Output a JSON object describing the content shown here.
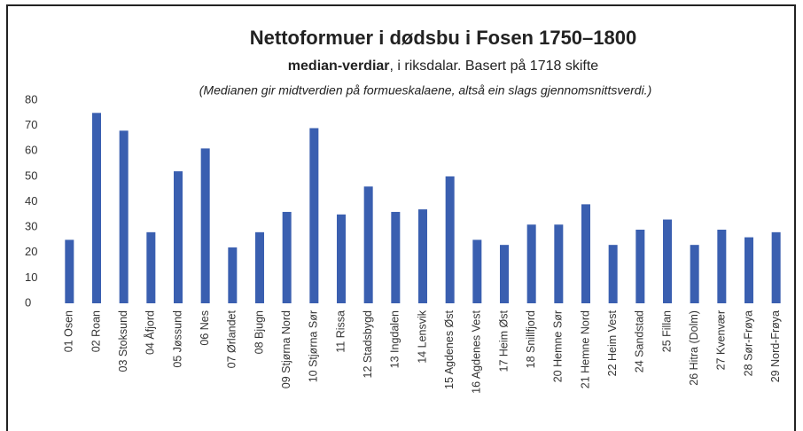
{
  "chart_data": {
    "type": "bar",
    "title": "Nettoformuer i dødsbu i Fosen 1750–1800",
    "subtitle_bold": "median-verdiar",
    "subtitle": ", i riksdalar. Basert på 1718 skifte",
    "note": "(Medianen gir midtverdien på formueskalaene, altså ein slags gjennomsnittsverdi.)",
    "categories": [
      "01 Osen",
      "02 Roan",
      "03 Stoksund",
      "04 Åfjord",
      "05 Jøssund",
      "06 Nes",
      "07 Ørlandet",
      "08 Bjugn",
      "09 Stjørna Nord",
      "10 Stjørna Sør",
      "11 Rissa",
      "12 Stadsbygd",
      "13 Ingdalen",
      "14 Lensvik",
      "15 Agdenes Øst",
      "16 Agdenes Vest",
      "17 Heim Øst",
      "18 Snillfjord",
      "20 Hemne Sør",
      "21 Hemne Nord",
      "22 Heim Vest",
      "24 Sandstad",
      "25 Fillan",
      "26 Hitra (Dolm)",
      "27 Kvenvær",
      "28 Sør-Frøya",
      "29 Nord-Frøya"
    ],
    "values": [
      25,
      75,
      68,
      28,
      52,
      61,
      22,
      28,
      36,
      69,
      35,
      46,
      36,
      37,
      50,
      25,
      23,
      31,
      31,
      39,
      23,
      29,
      33,
      23,
      29,
      26,
      28
    ],
    "color": "#3a5fb0",
    "ylim": [
      0,
      80
    ],
    "yticks": [
      0,
      10,
      20,
      30,
      40,
      50,
      60,
      70,
      80
    ],
    "grid": false
  }
}
